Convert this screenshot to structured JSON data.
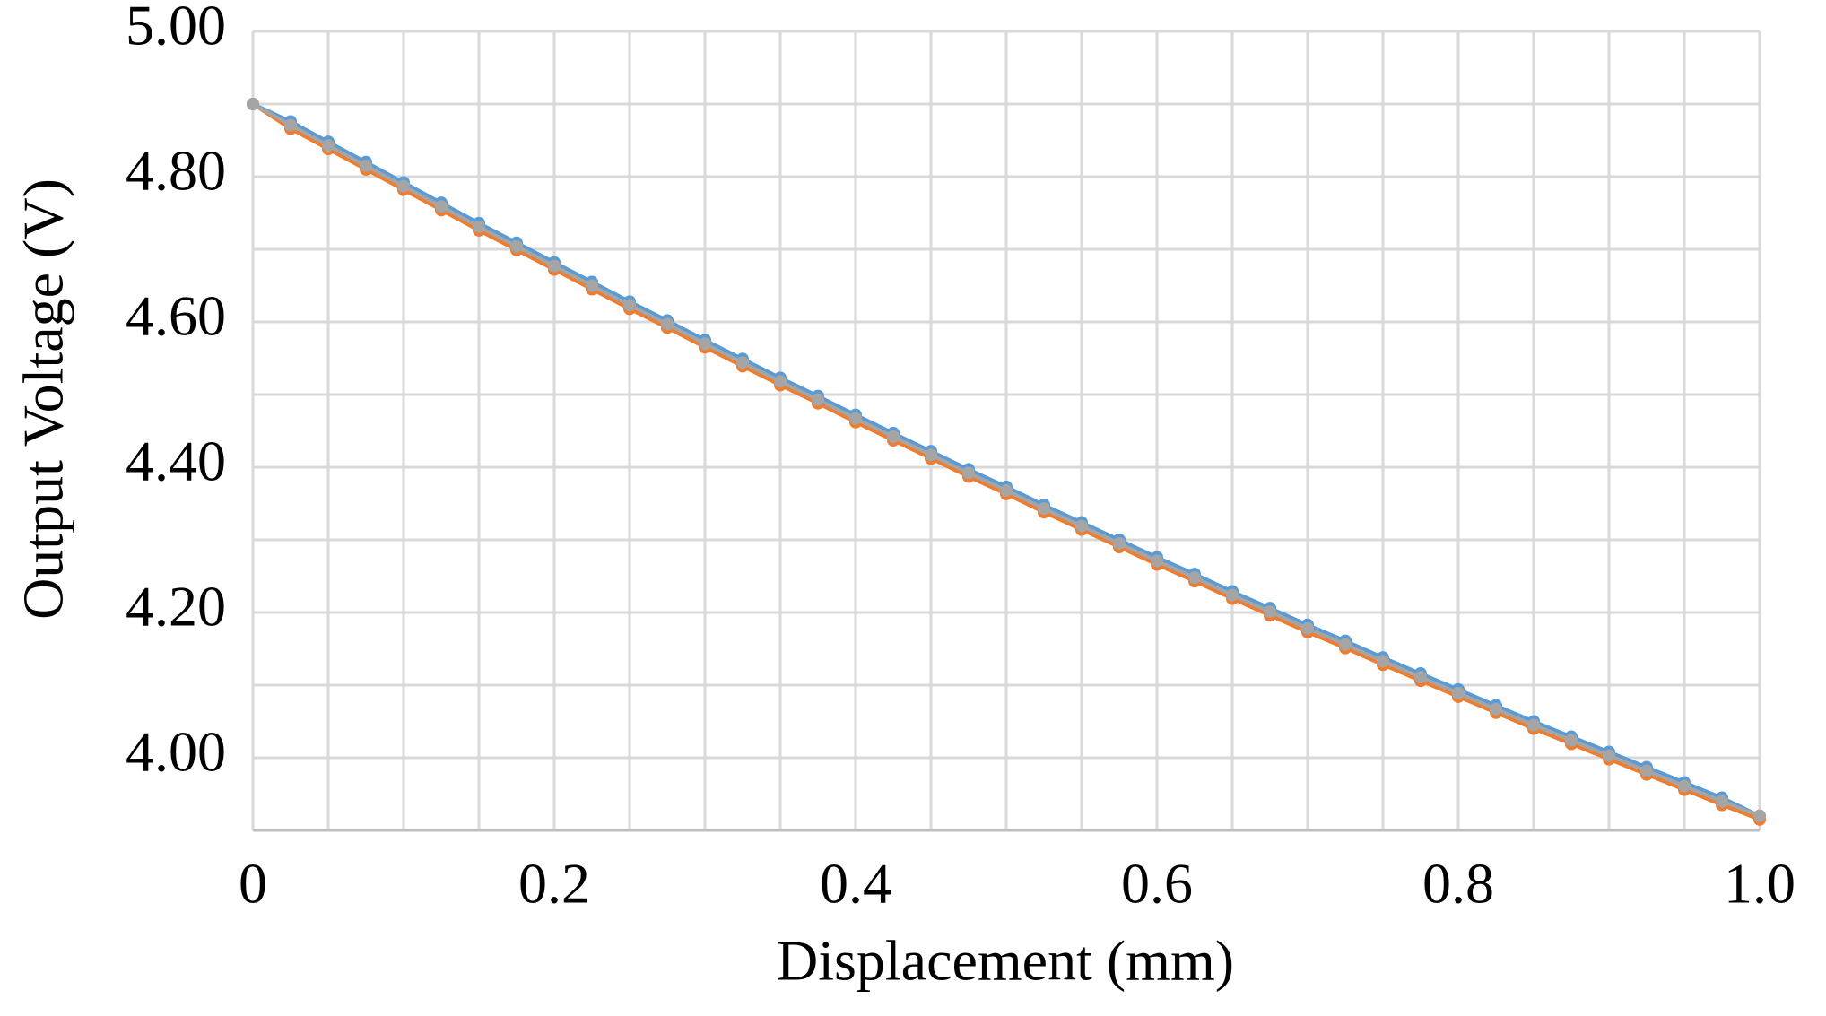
{
  "chart_data": {
    "type": "line",
    "x_label": "Displacement  (mm)",
    "y_label": "Output Voltage (V)",
    "xlim": [
      0,
      1
    ],
    "ylim": [
      3.9,
      5.0
    ],
    "xticks": [
      0,
      0.2,
      0.4,
      0.6,
      0.8,
      {
        "value": 1,
        "label": "1.0"
      }
    ],
    "yticks": [
      {
        "value": 4,
        "label": "4.00"
      },
      {
        "value": 4.2,
        "label": "4.20"
      },
      {
        "value": 4.4,
        "label": "4.40"
      },
      {
        "value": 4.6,
        "label": "4.60"
      },
      {
        "value": 4.8,
        "label": "4.80"
      },
      {
        "value": 5,
        "label": "5.00"
      }
    ],
    "xgrid": [
      0,
      0.05,
      0.1,
      0.15,
      0.2,
      0.25,
      0.3,
      0.35,
      0.4,
      0.45,
      0.5,
      0.55,
      0.6,
      0.65,
      0.7,
      0.75,
      0.8,
      0.85,
      0.9,
      0.95,
      1
    ],
    "ygrid": [
      3.9,
      4.0,
      4.1,
      4.2,
      4.3,
      4.4,
      4.5,
      4.6,
      4.7,
      4.8,
      4.9,
      5.0
    ],
    "grid": true,
    "x": [
      0,
      0.025,
      0.05,
      0.075,
      0.1,
      0.125,
      0.15,
      0.175,
      0.2,
      0.225,
      0.25,
      0.275,
      0.3,
      0.325,
      0.35,
      0.375,
      0.4,
      0.425,
      0.45,
      0.475,
      0.5,
      0.525,
      0.55,
      0.575,
      0.6,
      0.625,
      0.65,
      0.675,
      0.7,
      0.725,
      0.75,
      0.775,
      0.8,
      0.825,
      0.85,
      0.875,
      0.9,
      0.925,
      0.95,
      0.975,
      1
    ],
    "series": [
      {
        "color": "#5b9bd5",
        "values": [
          4.9,
          4.876,
          4.848,
          4.82,
          4.792,
          4.764,
          4.736,
          4.709,
          4.682,
          4.655,
          4.628,
          4.602,
          4.575,
          4.549,
          4.523,
          4.498,
          4.472,
          4.447,
          4.422,
          4.397,
          4.373,
          4.348,
          4.324,
          4.3,
          4.276,
          4.253,
          4.229,
          4.206,
          4.183,
          4.161,
          4.138,
          4.116,
          4.094,
          4.072,
          4.05,
          4.029,
          4.008,
          3.987,
          3.966,
          3.945,
          3.92
        ]
      },
      {
        "color": "#ed7d31",
        "values": [
          4.9,
          4.866,
          4.838,
          4.81,
          4.782,
          4.754,
          4.726,
          4.699,
          4.672,
          4.645,
          4.618,
          4.592,
          4.565,
          4.539,
          4.513,
          4.488,
          4.462,
          4.437,
          4.412,
          4.387,
          4.363,
          4.338,
          4.314,
          4.29,
          4.266,
          4.243,
          4.219,
          4.196,
          4.173,
          4.151,
          4.128,
          4.106,
          4.084,
          4.062,
          4.04,
          4.019,
          3.998,
          3.977,
          3.956,
          3.935,
          3.915
        ]
      },
      {
        "color": "#a5a5a5",
        "values": [
          4.9,
          4.871,
          4.843,
          4.815,
          4.787,
          4.759,
          4.731,
          4.704,
          4.677,
          4.65,
          4.623,
          4.597,
          4.57,
          4.544,
          4.518,
          4.493,
          4.467,
          4.442,
          4.417,
          4.392,
          4.368,
          4.343,
          4.319,
          4.295,
          4.271,
          4.248,
          4.224,
          4.201,
          4.178,
          4.156,
          4.133,
          4.111,
          4.089,
          4.067,
          4.045,
          4.024,
          4.003,
          3.982,
          3.961,
          3.94,
          3.92
        ]
      }
    ]
  }
}
